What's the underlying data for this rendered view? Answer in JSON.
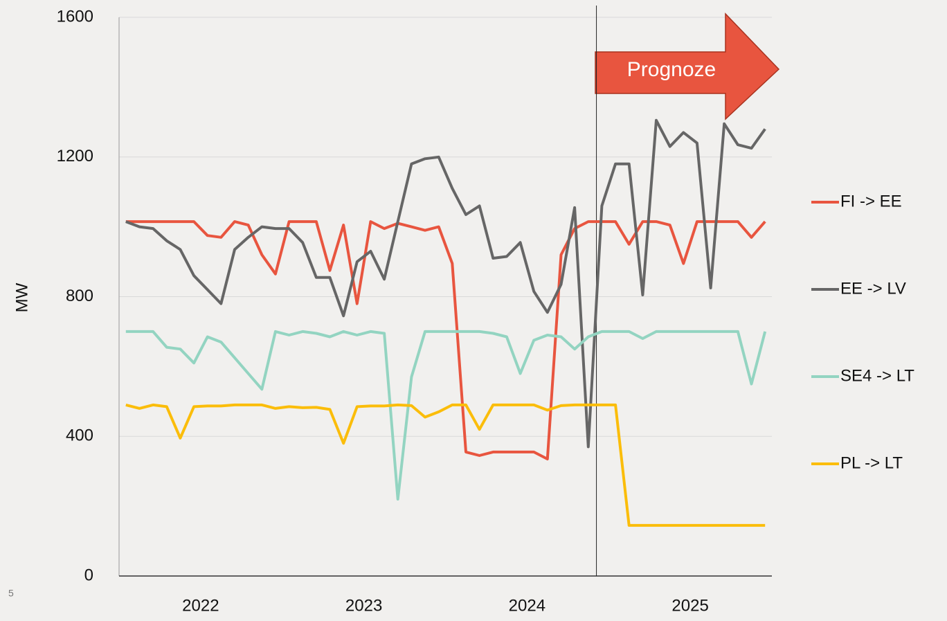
{
  "page_number": "5",
  "chart_data": {
    "type": "line",
    "y_label": "MW",
    "annotation": "Prognoze",
    "categories": [
      "2022",
      null,
      null,
      null,
      null,
      null,
      null,
      null,
      null,
      null,
      null,
      null,
      "2023",
      null,
      null,
      null,
      null,
      null,
      null,
      null,
      null,
      null,
      null,
      null,
      "2024",
      null,
      null,
      null,
      null,
      null,
      null,
      null,
      null,
      null,
      null,
      null,
      "2025",
      null,
      null,
      null,
      null,
      null,
      null,
      null,
      null,
      null,
      null,
      null
    ],
    "ylim": [
      0,
      1600
    ],
    "yticks": [
      0,
      400,
      800,
      1200,
      1600
    ],
    "grid": true,
    "legend": "right",
    "series": [
      {
        "name": "FI -> EE",
        "color": "#e8553f",
        "values": [
          1015,
          1015,
          1015,
          1015,
          1015,
          1015,
          975,
          970,
          1015,
          1005,
          920,
          865,
          1015,
          1015,
          1015,
          875,
          1005,
          780,
          1015,
          995,
          1010,
          1000,
          990,
          1000,
          895,
          355,
          345,
          355,
          355,
          355,
          355,
          335,
          920,
          995,
          1015,
          1015,
          1015,
          950,
          1015,
          1015,
          1005,
          895,
          1015,
          1015,
          1015,
          1015,
          970,
          1015
        ]
      },
      {
        "name": "EE -> LV",
        "color": "#666666",
        "values": [
          1015,
          1000,
          995,
          960,
          935,
          860,
          820,
          780,
          935,
          970,
          1000,
          995,
          995,
          955,
          855,
          855,
          745,
          900,
          930,
          850,
          1015,
          1180,
          1195,
          1200,
          1110,
          1035,
          1060,
          910,
          915,
          955,
          815,
          755,
          835,
          1055,
          370,
          1060,
          1180,
          1180,
          805,
          1305,
          1230,
          1270,
          1240,
          825,
          1295,
          1235,
          1225,
          1280
        ]
      },
      {
        "name": "SE4 -> LT",
        "color": "#93d4c1",
        "values": [
          700,
          700,
          700,
          655,
          650,
          610,
          685,
          670,
          625,
          580,
          535,
          700,
          690,
          700,
          695,
          685,
          700,
          690,
          700,
          695,
          220,
          570,
          700,
          700,
          700,
          700,
          700,
          695,
          685,
          580,
          675,
          690,
          685,
          650,
          685,
          700,
          700,
          700,
          680,
          700,
          700,
          700,
          700,
          700,
          700,
          700,
          550,
          700
        ]
      },
      {
        "name": "PL -> LT",
        "color": "#fbbd0a",
        "values": [
          490,
          480,
          490,
          485,
          395,
          485,
          487,
          487,
          490,
          490,
          490,
          480,
          485,
          482,
          483,
          477,
          380,
          485,
          487,
          487,
          490,
          488,
          455,
          470,
          490,
          490,
          420,
          490,
          490,
          490,
          490,
          475,
          488,
          490,
          490,
          490,
          490,
          145,
          145,
          145,
          145,
          145,
          145,
          145,
          145,
          145,
          145,
          145
        ]
      }
    ]
  }
}
